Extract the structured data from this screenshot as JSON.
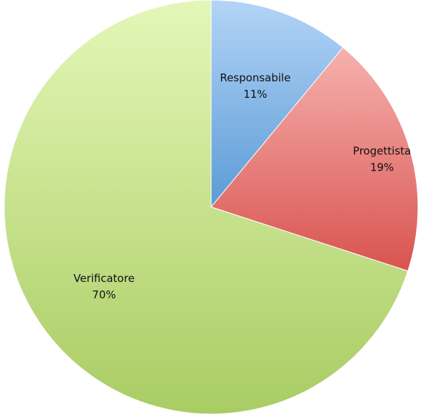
{
  "chart_data": {
    "type": "pie",
    "title": "",
    "slices": [
      {
        "label": "Responsabile",
        "percent_label": "11%",
        "value": 11,
        "color_top": "#b3d4f7",
        "color_bottom": "#5b9bd5"
      },
      {
        "label": "Progettista",
        "percent_label": "19%",
        "value": 19,
        "color_top": "#f6b1ae",
        "color_bottom": "#d9534f"
      },
      {
        "label": "Verificatore",
        "percent_label": "70%",
        "value": 70,
        "color_top": "#e4f7b8",
        "color_bottom": "#a9cc63"
      }
    ],
    "start_angle": "12 o'clock",
    "direction": "clockwise",
    "legend": "none"
  }
}
